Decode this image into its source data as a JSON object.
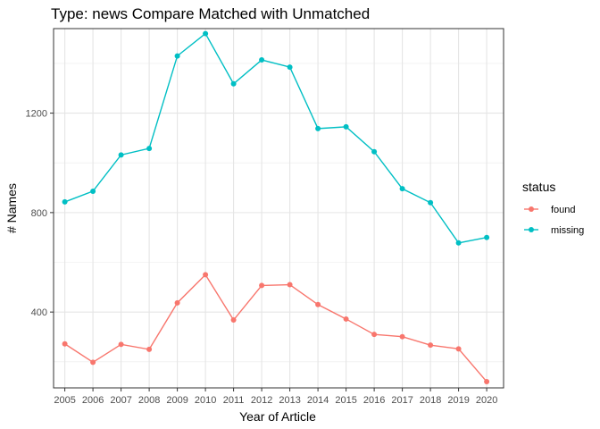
{
  "chart_data": {
    "type": "line",
    "title": "Type: news Compare Matched with Unmatched",
    "xlabel": "Year of Article",
    "ylabel": "# Names",
    "x": [
      2005,
      2006,
      2007,
      2008,
      2009,
      2010,
      2011,
      2012,
      2013,
      2014,
      2015,
      2016,
      2017,
      2018,
      2019,
      2020
    ],
    "xlim": [
      2004.6,
      2020.6
    ],
    "ylim": [
      95,
      1540
    ],
    "yticks": [
      400,
      800,
      1200
    ],
    "grid": true,
    "legend": {
      "title": "status",
      "position": "right"
    },
    "series": [
      {
        "name": "found",
        "color": "#F8766D",
        "values": [
          272,
          198,
          270,
          250,
          437,
          550,
          368,
          507,
          510,
          430,
          372,
          310,
          301,
          267,
          252,
          120
        ]
      },
      {
        "name": "missing",
        "color": "#00BFC4",
        "values": [
          843,
          886,
          1032,
          1058,
          1430,
          1520,
          1318,
          1414,
          1385,
          1138,
          1145,
          1045,
          896,
          840,
          678,
          700
        ]
      }
    ]
  }
}
